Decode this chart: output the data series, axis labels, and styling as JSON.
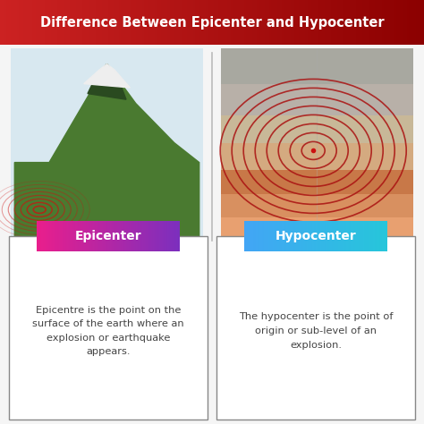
{
  "title": "Difference Between Epicenter and Hypocenter",
  "title_text_color": "#ffffff",
  "bg_color": "#f5f5f5",
  "left_label": "Epicenter",
  "right_label": "Hypocenter",
  "left_label_grad_left": "#e91e8c",
  "left_label_grad_right": "#7b2fbe",
  "right_label_grad_left": "#42a5f5",
  "right_label_grad_right": "#26c6da",
  "left_desc": "Epicentre is the point on the\nsurface of the earth where an\nexplosion or earthquake\nappears.",
  "right_desc": "The hypocenter is the point of\norigin or sub-level of an\nexplosion.",
  "desc_text_color": "#444444",
  "box_border_color": "#888888",
  "label_text_color": "#ffffff",
  "title_grad_left": "#cc2222",
  "title_grad_right": "#8b0000",
  "img_bg_left": "#dce8f0",
  "img_bg_right": "#f0ede8",
  "divider_color": "#bbbbbb"
}
